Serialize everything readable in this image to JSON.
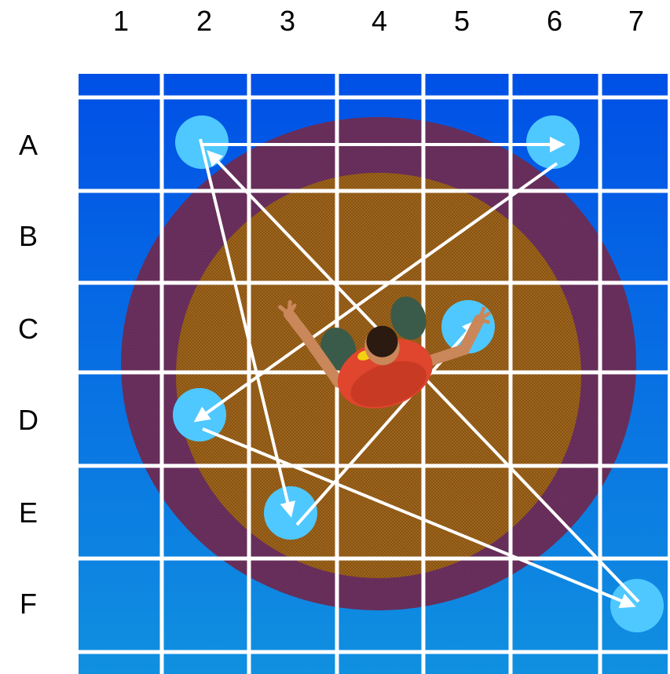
{
  "columns": [
    "1",
    "2",
    "3",
    "4",
    "5",
    "6",
    "7"
  ],
  "rows": [
    "A",
    "B",
    "C",
    "D",
    "E",
    "F"
  ],
  "colors": {
    "background_top": "#0050e6",
    "background_bottom": "#1090e0",
    "outer_ring": "#6e3060",
    "inner_disc": "#a0661a",
    "grid_lines": "#ffffff",
    "target": "#4fc8ff",
    "arrow": "#ffffff",
    "person_shirt": "#e0452e",
    "person_pants": "#3a5a4a",
    "person_skin": "#c9875a",
    "person_hair": "#2a1a10"
  },
  "targets": [
    {
      "cell": "A2"
    },
    {
      "cell": "A6"
    },
    {
      "cell": "C5"
    },
    {
      "cell": "D2"
    },
    {
      "cell": "E3"
    },
    {
      "cell": "F7"
    }
  ],
  "path_sequence": [
    "A2",
    "A6",
    "D2",
    "F7",
    "A2",
    "E3",
    "C5"
  ],
  "center_figure": "person-top-view"
}
